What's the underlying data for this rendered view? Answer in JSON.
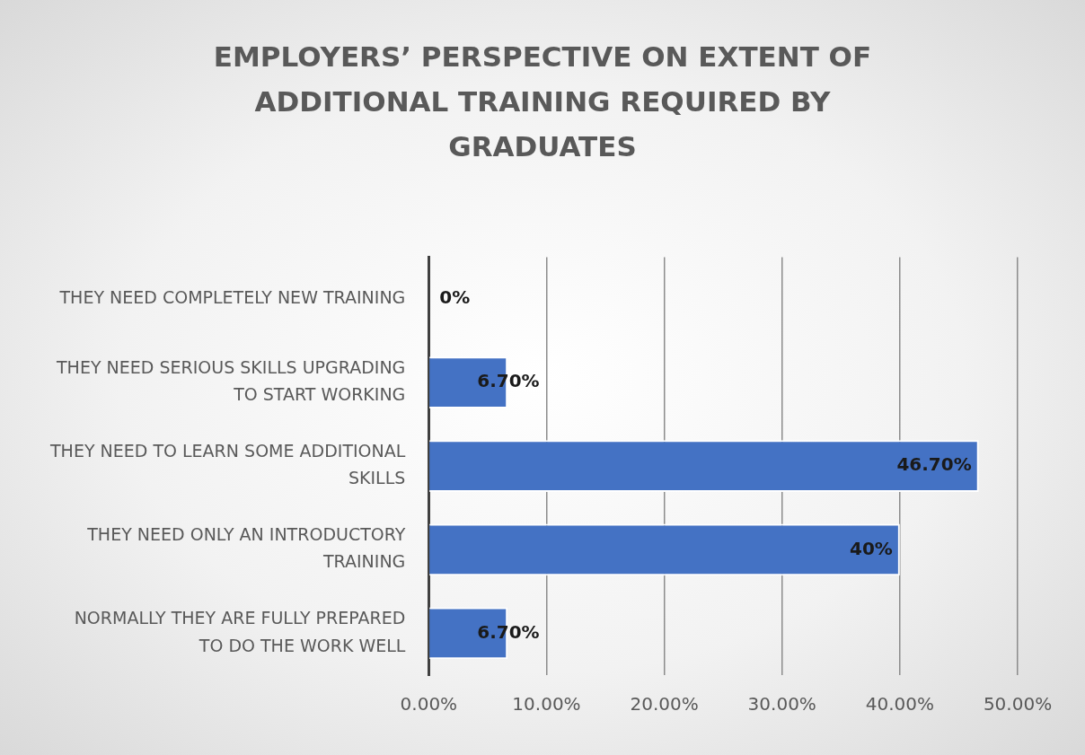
{
  "chart_data": {
    "type": "bar",
    "orientation": "horizontal",
    "title": "EMPLOYERS’ PERSPECTIVE ON EXTENT OF ADDITIONAL TRAINING REQUIRED BY GRADUATES",
    "categories": [
      "THEY NEED COMPLETELY NEW TRAINING",
      "THEY NEED SERIOUS SKILLS UPGRADING TO START WORKING",
      "THEY NEED TO LEARN SOME ADDITIONAL SKILLS",
      "THEY NEED ONLY AN INTRODUCTORY TRAINING",
      "NORMALLY THEY ARE FULLY PREPARED TO DO THE WORK WELL"
    ],
    "values": [
      0,
      6.7,
      46.7,
      40,
      6.7
    ],
    "value_labels": [
      "0%",
      "6.70%",
      "46.70%",
      "40%",
      "6.70%"
    ],
    "color": "#4472c4",
    "xlim": [
      0,
      50
    ],
    "xticks": [
      {
        "value": 0,
        "label": "0.00%"
      },
      {
        "value": 10,
        "label": "10.00%"
      },
      {
        "value": 20,
        "label": "20.00%"
      },
      {
        "value": 30,
        "label": "30.00%"
      },
      {
        "value": 40,
        "label": "40.00%"
      },
      {
        "value": 50,
        "label": "50.00%"
      }
    ],
    "grid": "x",
    "legend": false
  }
}
